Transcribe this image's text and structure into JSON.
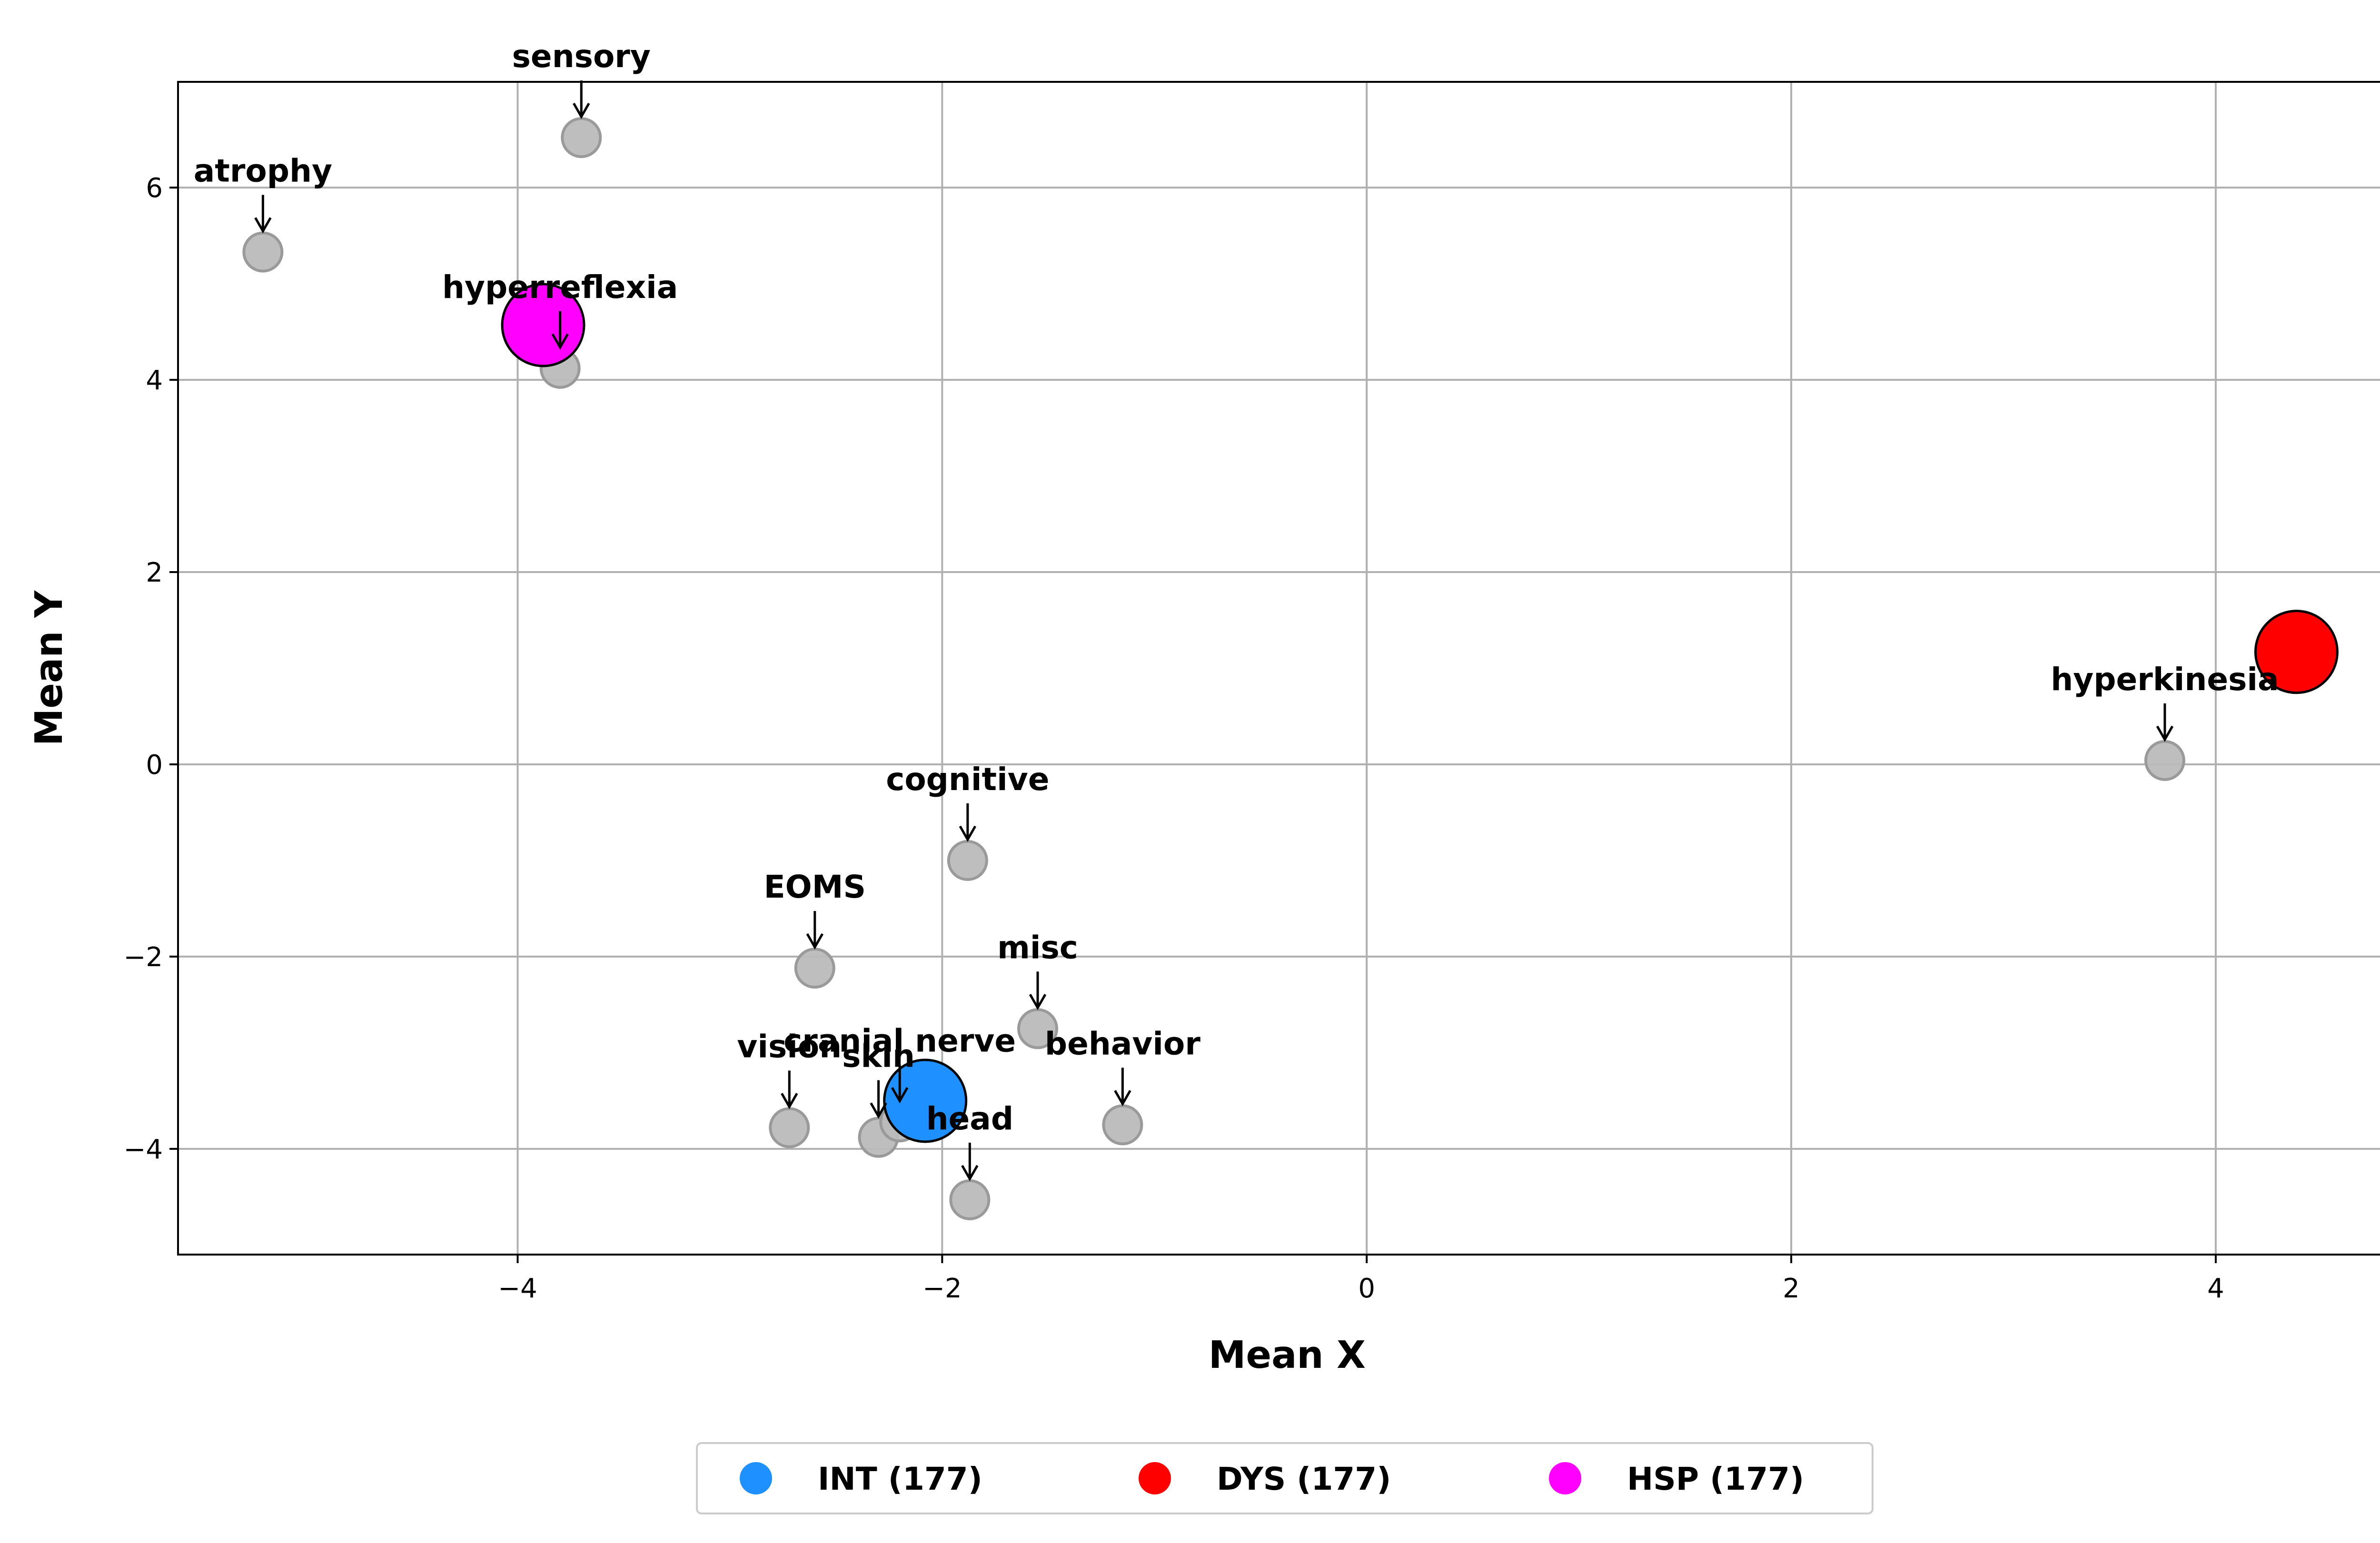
{
  "chart_data": {
    "type": "scatter",
    "xlabel": "Mean X",
    "ylabel": "Mean Y",
    "xlim": [
      -5.6,
      4.85
    ],
    "ylim": [
      -5.1,
      7.1
    ],
    "xticks": [
      -4,
      -2,
      0,
      2,
      4
    ],
    "yticks": [
      -4,
      -2,
      0,
      2,
      4,
      6
    ],
    "xtick_labels": [
      "−4",
      "−2",
      "0",
      "2",
      "4"
    ],
    "ytick_labels": [
      "−4",
      "−2",
      "0",
      "2",
      "4",
      "6"
    ],
    "grid": true,
    "legend_position": "bottom-center",
    "feature_points": [
      {
        "label": "sensory",
        "x": -3.7,
        "y": 6.52
      },
      {
        "label": "atrophy",
        "x": -5.2,
        "y": 5.33
      },
      {
        "label": "hyperreflexia",
        "x": -3.8,
        "y": 4.12
      },
      {
        "label": "hyperkinesia",
        "x": 3.76,
        "y": 0.04
      },
      {
        "label": "cognitive",
        "x": -1.88,
        "y": -1.0
      },
      {
        "label": "EOMS",
        "x": -2.6,
        "y": -2.12
      },
      {
        "label": "misc",
        "x": -1.55,
        "y": -2.75
      },
      {
        "label": "behavior",
        "x": -1.15,
        "y": -3.75
      },
      {
        "label": "vision",
        "x": -2.72,
        "y": -3.78
      },
      {
        "label": "skin",
        "x": -2.3,
        "y": -3.88
      },
      {
        "label": "cranial nerve",
        "x": -2.2,
        "y": -3.72
      },
      {
        "label": "head",
        "x": -1.87,
        "y": -4.53
      }
    ],
    "series": [
      {
        "name": "INT (177)",
        "x": -2.08,
        "y": -3.5,
        "color": "#1E90FF"
      },
      {
        "name": "DYS (177)",
        "x": 4.38,
        "y": 1.17,
        "color": "#FF0000"
      },
      {
        "name": "HSP (177)",
        "x": -3.88,
        "y": 4.57,
        "color": "#FF00FF"
      }
    ],
    "feature_color": "#BBBBBB"
  }
}
